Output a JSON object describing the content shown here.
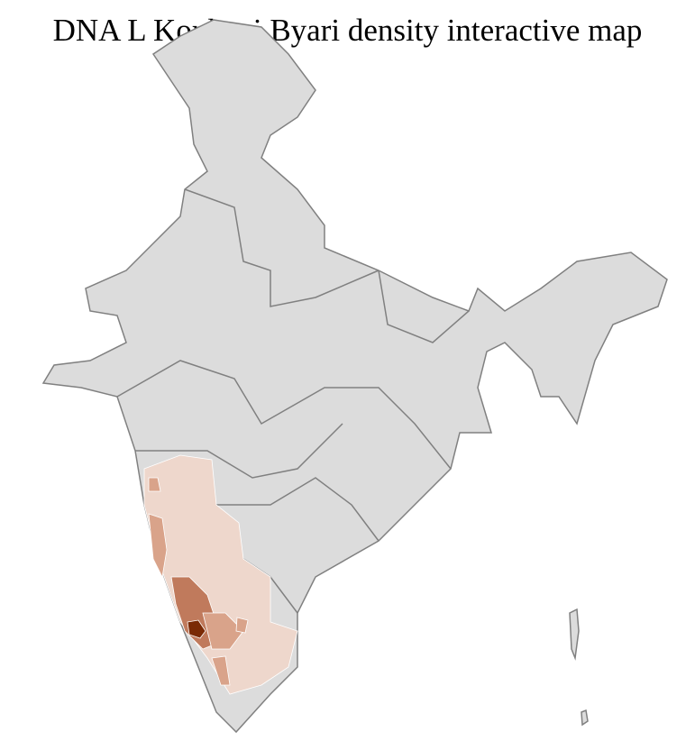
{
  "title": "DNA L Konkani Byari density interactive map",
  "colors": {
    "base_fill": "#dcdcdc",
    "district_border": "#ffffff",
    "state_border": "#808080",
    "density_low": "#eed7cc",
    "density_mid": "#d9a38a",
    "density_high": "#c07a5c",
    "density_max": "#7a2a05"
  }
}
